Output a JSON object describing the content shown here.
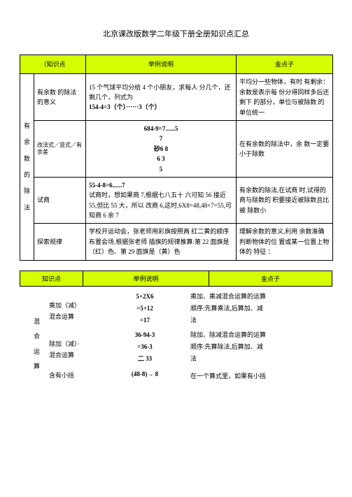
{
  "page_title": "北京课改版数学二年级下册全册知识点汇总",
  "table1": {
    "header": {
      "col1": "（知识点",
      "col2": "举例说明",
      "col3": "金点子"
    },
    "left_vert": "有余数的除法",
    "rows": [
      {
        "label": "有余数 的除法 的意义",
        "example_l1": "15 个气球平均分给 4 个小朋友，求每人 分几个，还剩几个，列式为",
        "example_l2": "154-4=3（个）······3（个）",
        "tip": "平均分一些物体，有时 有剩余：余数是表示每 份分得同样多后还剩下 的部分，单位与被除数 的单位统一"
      },
      {
        "label": "改法式／竖式／有余差",
        "calc": [
          "684-9=7......5",
          "7",
          "砂6 8",
          "6 3",
          "5"
        ],
        "tip": "在有余数的除法中，余 数一定要小于除数"
      },
      {
        "label": "试商",
        "example_l1": "55-4-8=6......7",
        "example_l2": "试商时，想如果商 7,根据七八五十 六可知 56 接近 55,但比 55 大，所以 改商 6,这时,6X8=48,48+7=55,可 知商 6 余 7",
        "tip": "有余数的除法,在试商 时,试得的商与除数的 积要接近被除数且比被 除数小"
      },
      {
        "label": "探索规律",
        "example": "学校开运动会，张老师用彩旗按照两 红二黄的顺序布置会场,根据张老师 插旗的规律推算:第 22 面旗是（红）色、第 29 面旗是（黄）色",
        "tip": "理解余数的意义,利用 余数准确判断物体的位 置或某一位置上物体的 特征 ："
      }
    ]
  },
  "table2": {
    "header": {
      "col1": "知识点",
      "col2": "举例说明",
      "col3": "金点子"
    },
    "left_vert": "混合运算",
    "block1": {
      "label1": "乘加（减）",
      "label2": "混合运算",
      "calc": [
        "5+2X6",
        "=5+12",
        "=17"
      ],
      "desc": [
        "乘加、乘减混合运算的运算",
        "顺序:先算乘法,后算加、减",
        "法"
      ]
    },
    "block2": {
      "label1": "除加（减）·",
      "label2": "混合运算",
      "calc": [
        "36-94-3",
        "=36-3",
        "二 33"
      ],
      "desc": [
        "除加、除减混合运算的运算",
        "顺序:先算除法,后算加、减",
        "法"
      ]
    },
    "last": {
      "label": "含有小括",
      "calc": "(48-8)→ 8",
      "desc": "在一个算式里，如果有小括"
    }
  },
  "colors": {
    "header_bg": "#d5ff00"
  }
}
